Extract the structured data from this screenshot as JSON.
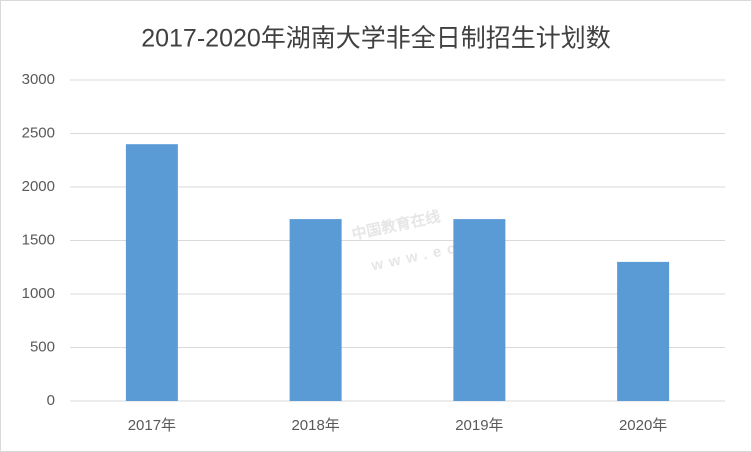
{
  "chart_data": {
    "type": "bar",
    "title": "2017-2020年湖南大学非全日制招生计划数",
    "categories": [
      "2017年",
      "2018年",
      "2019年",
      "2020年"
    ],
    "values": [
      2400,
      1700,
      1700,
      1300
    ],
    "color": "#5b9bd5",
    "ylim": [
      0,
      3000
    ],
    "yticks": [
      0,
      500,
      1000,
      1500,
      2000,
      2500,
      3000
    ],
    "grid": true,
    "watermark": "中国教育在线",
    "watermark_url": "www.eol.cn"
  }
}
